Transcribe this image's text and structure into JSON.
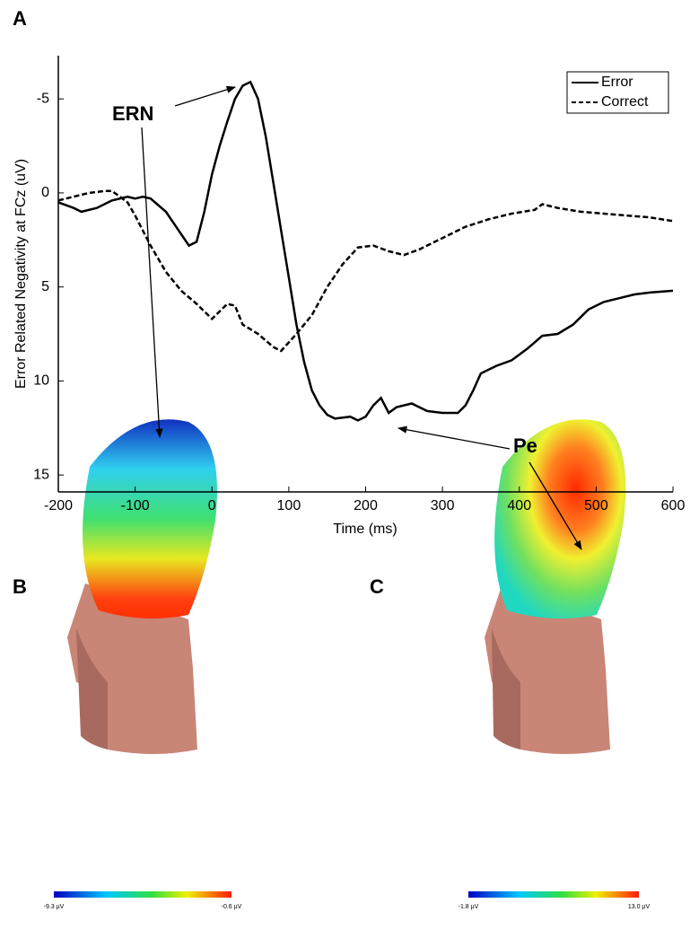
{
  "panels": {
    "a": "A",
    "b": "B",
    "c": "C"
  },
  "chart_data": {
    "type": "line",
    "ylabel": "Error Related Negativity at FCz (uV)",
    "xlabel": "Time (ms)",
    "xlim": [
      -200,
      600
    ],
    "xticks": [
      -200,
      -100,
      0,
      100,
      200,
      300,
      400,
      500,
      600
    ],
    "ylim": [
      -7.3,
      15.9
    ],
    "yticks": [
      -5,
      0,
      5,
      10,
      15
    ],
    "y_reversed": true,
    "legend": "upper right",
    "annotations": [
      "ERN",
      "Pe"
    ],
    "series": [
      {
        "name": "Error",
        "color": "#000000",
        "line_style": "solid",
        "x": [
          -200,
          -180,
          -170,
          -150,
          -130,
          -110,
          -100,
          -90,
          -80,
          -60,
          -40,
          -30,
          -20,
          -10,
          0,
          10,
          20,
          30,
          40,
          50,
          60,
          70,
          80,
          90,
          100,
          110,
          120,
          130,
          140,
          150,
          160,
          180,
          190,
          200,
          210,
          220,
          230,
          240,
          260,
          280,
          300,
          320,
          330,
          340,
          350,
          370,
          390,
          410,
          430,
          450,
          470,
          490,
          510,
          530,
          550,
          570,
          600
        ],
        "values": [
          0.5,
          0.8,
          1.0,
          0.8,
          0.4,
          0.2,
          0.3,
          0.2,
          0.3,
          1.0,
          2.2,
          2.8,
          2.6,
          1.0,
          -1.0,
          -2.5,
          -3.8,
          -5.0,
          -5.7,
          -5.9,
          -5.0,
          -3.0,
          -0.5,
          2.0,
          4.5,
          7.0,
          9.0,
          10.5,
          11.3,
          11.8,
          12.0,
          11.9,
          12.1,
          11.9,
          11.3,
          10.9,
          11.7,
          11.4,
          11.2,
          11.6,
          11.7,
          11.7,
          11.3,
          10.5,
          9.6,
          9.2,
          8.9,
          8.3,
          7.6,
          7.5,
          7.0,
          6.2,
          5.8,
          5.6,
          5.4,
          5.3,
          5.2
        ]
      },
      {
        "name": "Correct",
        "color": "#000000",
        "line_style": "dashed",
        "x": [
          -200,
          -180,
          -160,
          -140,
          -130,
          -110,
          -100,
          -80,
          -60,
          -40,
          -20,
          0,
          10,
          20,
          30,
          40,
          60,
          80,
          90,
          110,
          130,
          150,
          170,
          190,
          210,
          230,
          250,
          270,
          300,
          330,
          360,
          390,
          420,
          430,
          450,
          480,
          510,
          540,
          570,
          600
        ],
        "values": [
          0.4,
          0.2,
          0,
          -0.1,
          -0.1,
          0.5,
          1.2,
          2.8,
          4.2,
          5.2,
          5.9,
          6.7,
          6.3,
          5.9,
          6.0,
          7.0,
          7.5,
          8.2,
          8.4,
          7.5,
          6.5,
          5.0,
          3.8,
          2.9,
          2.8,
          3.1,
          3.3,
          3.0,
          2.4,
          1.8,
          1.4,
          1.1,
          0.9,
          0.6,
          0.8,
          1.0,
          1.1,
          1.2,
          1.3,
          1.5
        ]
      }
    ]
  },
  "topomaps": [
    {
      "min_label": "-9.3 µV",
      "max_label": "-0.6 µV"
    },
    {
      "min_label": "-1.8 µV",
      "max_label": "13.0 µV"
    }
  ]
}
